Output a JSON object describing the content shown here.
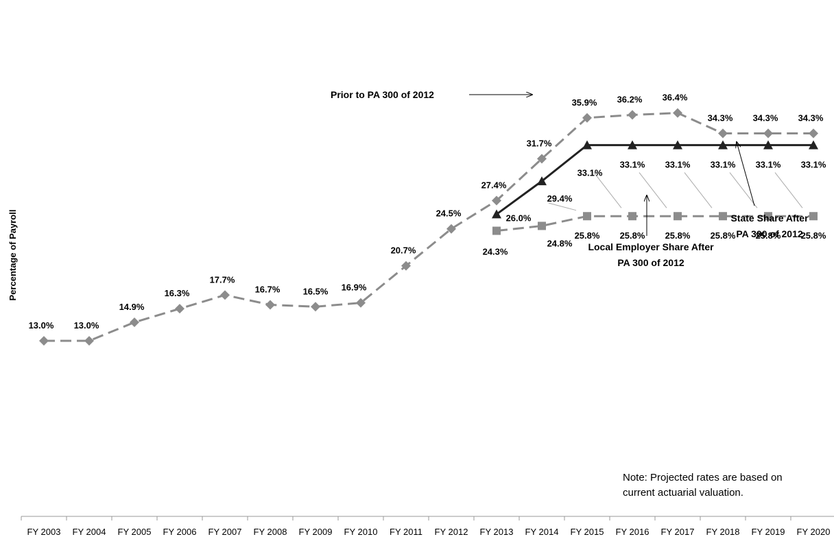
{
  "chart_data": {
    "type": "line",
    "ylabel": "Percentage of Payroll",
    "xlabel": "",
    "categories": [
      "FY 2003",
      "FY 2004",
      "FY 2005",
      "FY 2006",
      "FY 2007",
      "FY 2008",
      "FY 2009",
      "FY 2010",
      "FY 2011",
      "FY 2012",
      "FY 2013",
      "FY 2014",
      "FY 2015",
      "FY 2016",
      "FY 2017",
      "FY 2018",
      "FY 2019",
      "FY 2020"
    ],
    "ylim": [
      0,
      40
    ],
    "grid": false,
    "series": [
      {
        "name": "Prior to PA 300 of 2012",
        "color": "#8c8c8c",
        "marker": "diamond",
        "dashed": true,
        "values": [
          13.0,
          13.0,
          14.9,
          16.3,
          17.7,
          16.7,
          16.5,
          16.9,
          20.7,
          24.5,
          27.4,
          31.7,
          35.9,
          36.2,
          36.4,
          34.3,
          34.3,
          34.3
        ],
        "labels": [
          "13.0%",
          "13.0%",
          "14.9%",
          "16.3%",
          "17.7%",
          "16.7%",
          "16.5%",
          "16.9%",
          "20.7%",
          "24.5%",
          "27.4%",
          "31.7%",
          "35.9%",
          "36.2%",
          "36.4%",
          "34.3%",
          "34.3%",
          "34.3%"
        ]
      },
      {
        "name": "State Share After PA 300 of 2012",
        "color": "#222222",
        "marker": "triangle",
        "dashed": false,
        "values": [
          null,
          null,
          null,
          null,
          null,
          null,
          null,
          null,
          null,
          null,
          26.0,
          29.4,
          33.1,
          33.1,
          33.1,
          33.1,
          33.1,
          33.1
        ],
        "labels": [
          null,
          null,
          null,
          null,
          null,
          null,
          null,
          null,
          null,
          null,
          "26.0%",
          "29.4%",
          "33.1%",
          "33.1%",
          "33.1%",
          "33.1%",
          "33.1%",
          "33.1%"
        ]
      },
      {
        "name": "Local Employer Share After PA 300 of 2012",
        "color": "#8c8c8c",
        "marker": "square",
        "dashed": true,
        "values": [
          null,
          null,
          null,
          null,
          null,
          null,
          null,
          null,
          null,
          null,
          24.3,
          24.8,
          25.8,
          25.8,
          25.8,
          25.8,
          25.8,
          25.8
        ],
        "labels": [
          null,
          null,
          null,
          null,
          null,
          null,
          null,
          null,
          null,
          null,
          "24.3%",
          "24.8%",
          "25.8%",
          "25.8%",
          "25.8%",
          "25.8%",
          "25.8%",
          "25.8%"
        ]
      }
    ],
    "annotations": {
      "prior": "Prior to PA 300 of 2012",
      "state_line1": "State Share After",
      "state_line2": "PA 300 of 2012",
      "local_line1": "Local Employer Share After",
      "local_line2": "PA 300 of 2012"
    },
    "note_line1": "Note:  Projected rates are based on",
    "note_line2": "current actuarial valuation."
  }
}
